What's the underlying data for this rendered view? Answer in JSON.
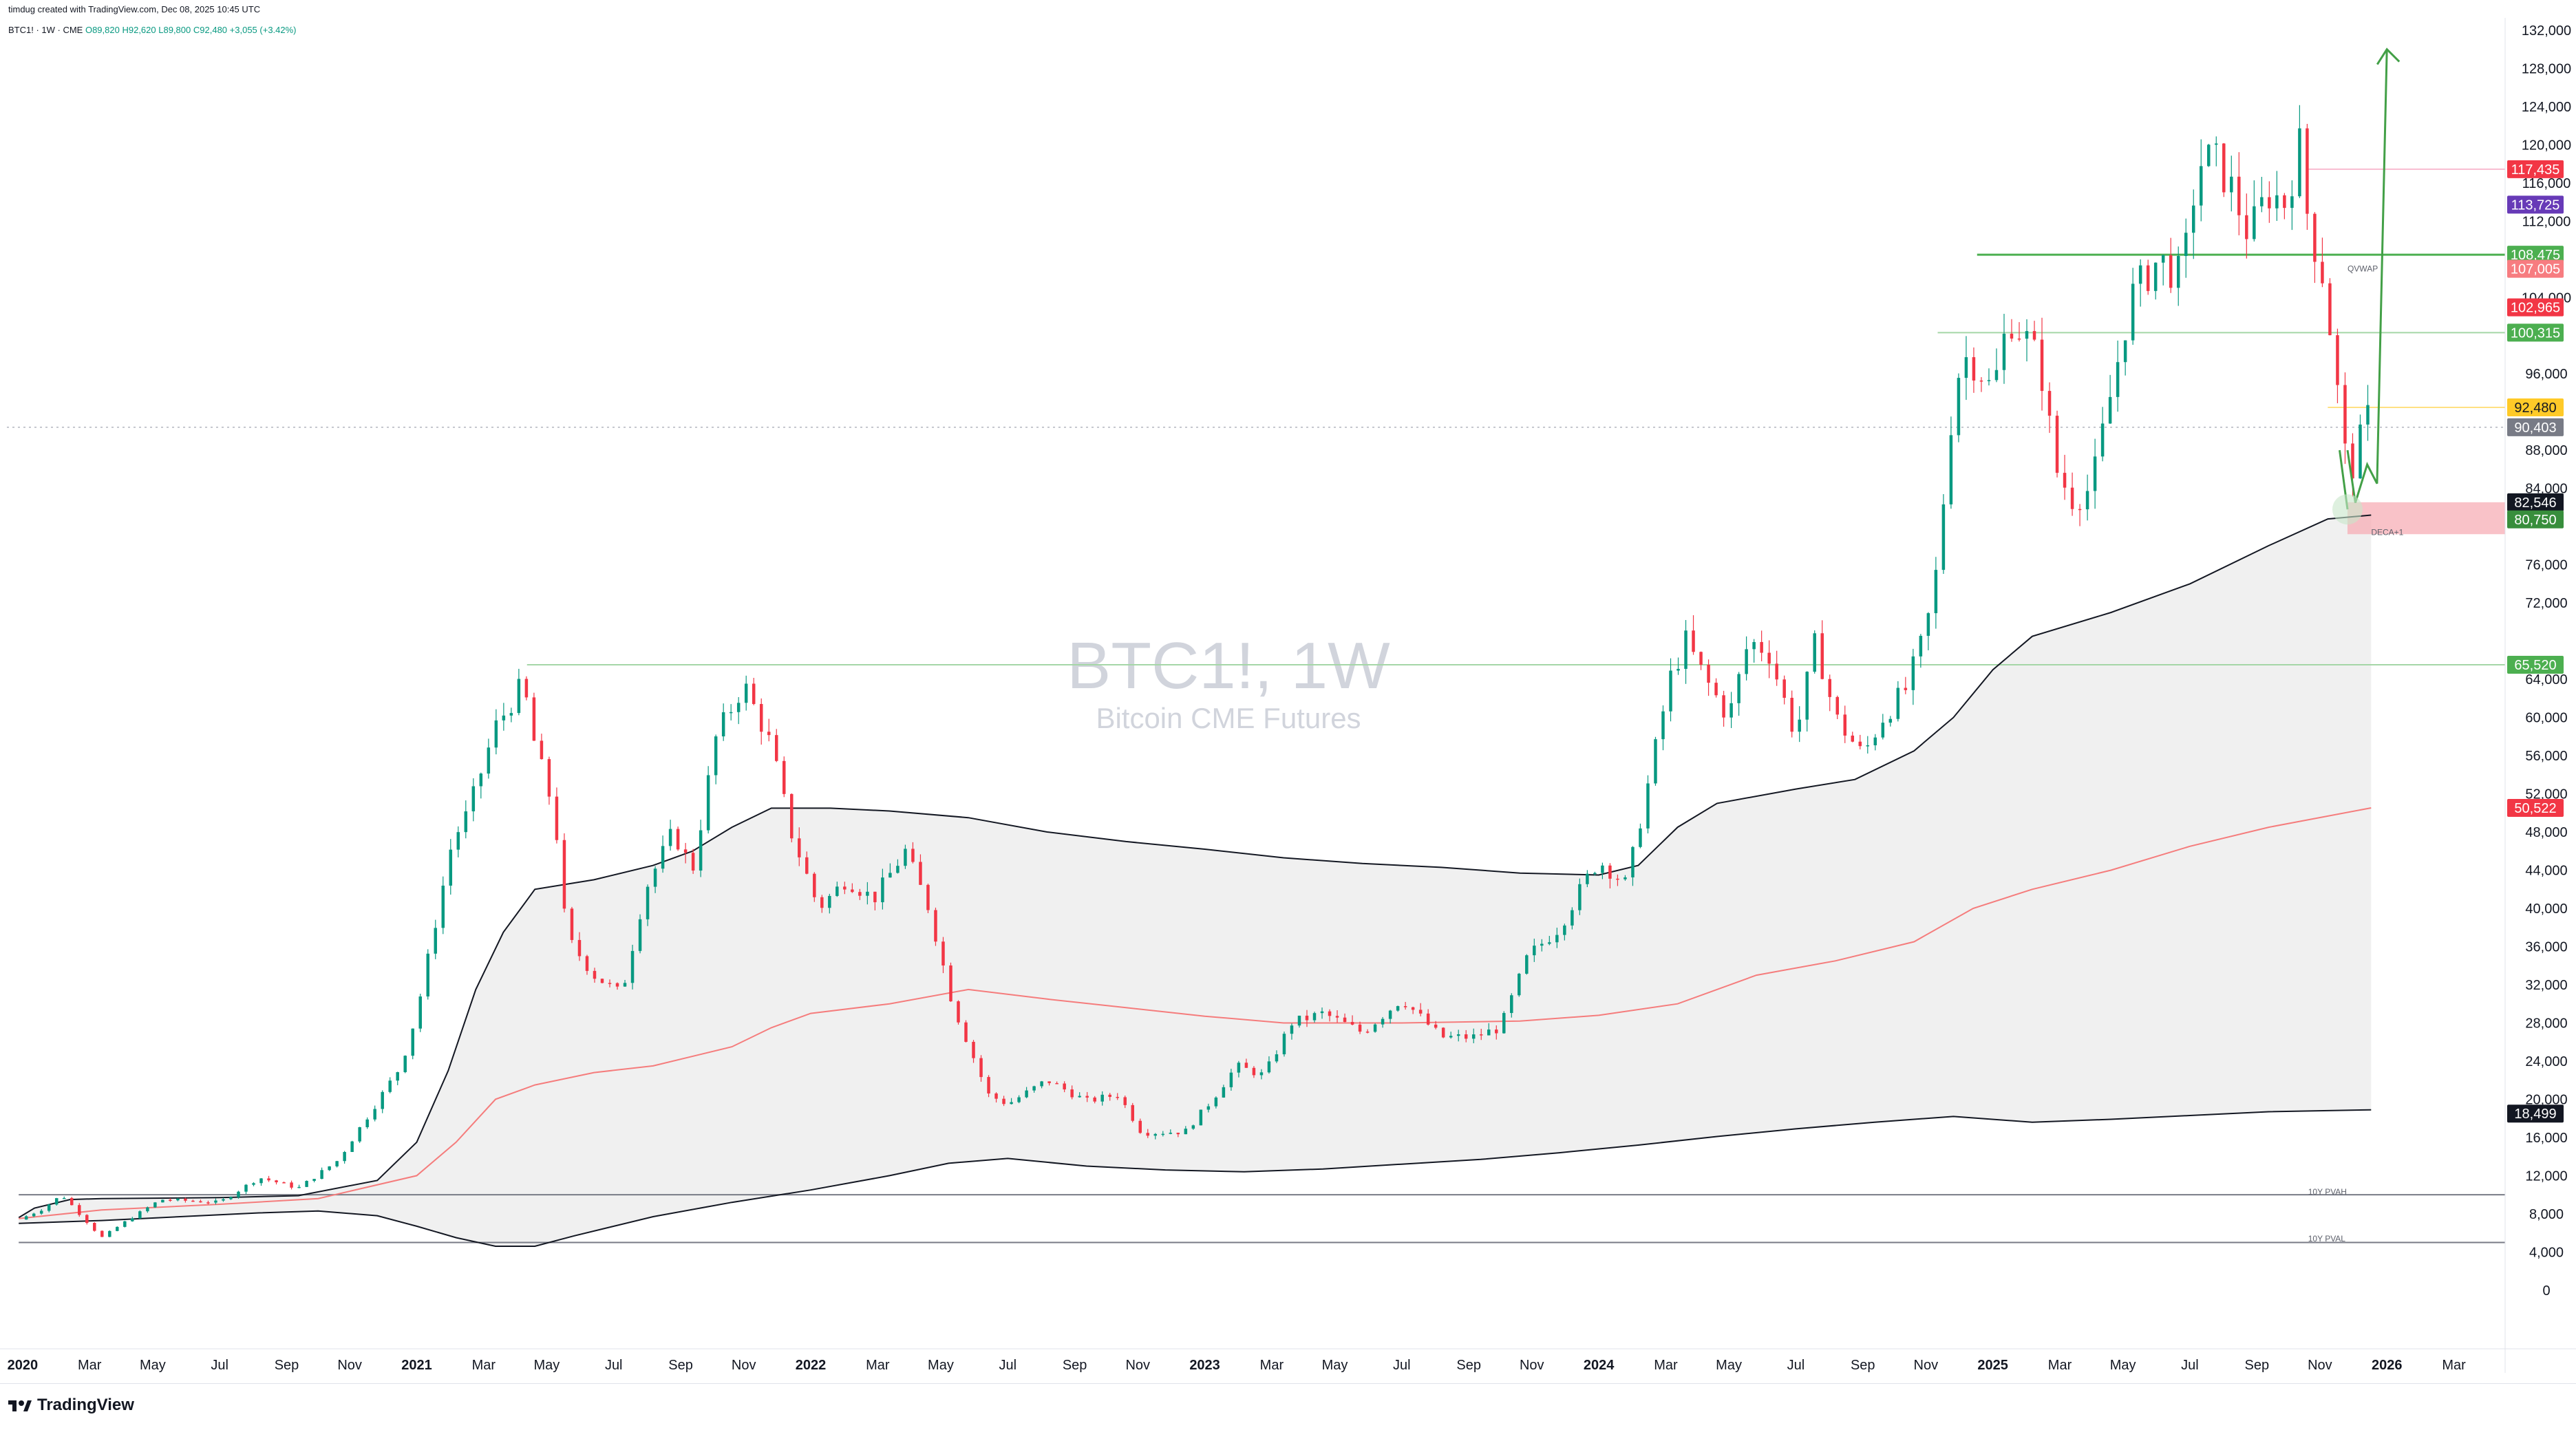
{
  "header": {
    "credit": "timdug created with TradingView.com, Dec 08, 2025 10:45 UTC",
    "symbol": "BTC1! · 1W · CME",
    "open": "O89,820",
    "high": "H92,620",
    "low": "L89,800",
    "close": "C92,480",
    "change": "+3,055 (+3.42%)"
  },
  "watermark": {
    "symbol": "BTC1!, 1W",
    "name": "Bitcoin CME Futures"
  },
  "footer": {
    "brand": "TradingView"
  },
  "colors": {
    "up": "#089981",
    "down": "#f23645",
    "channel_fill": "#f0f0f0",
    "red_line": "#f57c7c",
    "green_line": "#4caf50"
  },
  "chart_data": {
    "type": "candlestick",
    "y_ticks": [
      "132,000",
      "128,000",
      "124,000",
      "120,000",
      "116,000",
      "112,000",
      "104,000",
      "96,000",
      "88,000",
      "84,000",
      "76,000",
      "72,000",
      "64,000",
      "60,000",
      "56,000",
      "52,000",
      "48,000",
      "44,000",
      "40,000",
      "36,000",
      "32,000",
      "28,000",
      "24,000",
      "20,000",
      "16,000",
      "12,000",
      "8,000",
      "4,000",
      "0"
    ],
    "x_ticks": [
      {
        "label": "2020",
        "t": 2020.0,
        "bold": true
      },
      {
        "label": "Mar",
        "t": 2020.17
      },
      {
        "label": "May",
        "t": 2020.33
      },
      {
        "label": "Jul",
        "t": 2020.5
      },
      {
        "label": "Sep",
        "t": 2020.67
      },
      {
        "label": "Nov",
        "t": 2020.83
      },
      {
        "label": "2021",
        "t": 2021.0,
        "bold": true
      },
      {
        "label": "Mar",
        "t": 2021.17
      },
      {
        "label": "May",
        "t": 2021.33
      },
      {
        "label": "Jul",
        "t": 2021.5
      },
      {
        "label": "Sep",
        "t": 2021.67
      },
      {
        "label": "Nov",
        "t": 2021.83
      },
      {
        "label": "2022",
        "t": 2022.0,
        "bold": true
      },
      {
        "label": "Mar",
        "t": 2022.17
      },
      {
        "label": "May",
        "t": 2022.33
      },
      {
        "label": "Jul",
        "t": 2022.5
      },
      {
        "label": "Sep",
        "t": 2022.67
      },
      {
        "label": "Nov",
        "t": 2022.83
      },
      {
        "label": "2023",
        "t": 2023.0,
        "bold": true
      },
      {
        "label": "Mar",
        "t": 2023.17
      },
      {
        "label": "May",
        "t": 2023.33
      },
      {
        "label": "Jul",
        "t": 2023.5
      },
      {
        "label": "Sep",
        "t": 2023.67
      },
      {
        "label": "Nov",
        "t": 2023.83
      },
      {
        "label": "2024",
        "t": 2024.0,
        "bold": true
      },
      {
        "label": "Mar",
        "t": 2024.17
      },
      {
        "label": "May",
        "t": 2024.33
      },
      {
        "label": "Jul",
        "t": 2024.5
      },
      {
        "label": "Sep",
        "t": 2024.67
      },
      {
        "label": "Nov",
        "t": 2024.83
      },
      {
        "label": "2025",
        "t": 2025.0,
        "bold": true
      },
      {
        "label": "Mar",
        "t": 2025.17
      },
      {
        "label": "May",
        "t": 2025.33
      },
      {
        "label": "Jul",
        "t": 2025.5
      },
      {
        "label": "Sep",
        "t": 2025.67
      },
      {
        "label": "Nov",
        "t": 2025.83
      },
      {
        "label": "2026",
        "t": 2026.0,
        "bold": true
      },
      {
        "label": "Mar",
        "t": 2026.17
      }
    ],
    "price_path": [
      [
        2019.99,
        7400
      ],
      [
        2020.05,
        8500
      ],
      [
        2020.1,
        10000
      ],
      [
        2020.2,
        5500
      ],
      [
        2020.25,
        6900
      ],
      [
        2020.35,
        9500
      ],
      [
        2020.5,
        9200
      ],
      [
        2020.6,
        11800
      ],
      [
        2020.7,
        10700
      ],
      [
        2020.8,
        13600
      ],
      [
        2020.88,
        18500
      ],
      [
        2020.96,
        23500
      ],
      [
        2021.0,
        29000
      ],
      [
        2021.04,
        37000
      ],
      [
        2021.09,
        47000
      ],
      [
        2021.13,
        50000
      ],
      [
        2021.2,
        59000
      ],
      [
        2021.27,
        63500
      ],
      [
        2021.3,
        57000
      ],
      [
        2021.35,
        50000
      ],
      [
        2021.38,
        37000
      ],
      [
        2021.45,
        33000
      ],
      [
        2021.52,
        31000
      ],
      [
        2021.58,
        42000
      ],
      [
        2021.65,
        48000
      ],
      [
        2021.7,
        44000
      ],
      [
        2021.76,
        58000
      ],
      [
        2021.83,
        63500
      ],
      [
        2021.9,
        57000
      ],
      [
        2021.95,
        48000
      ],
      [
        2022.02,
        40000
      ],
      [
        2022.09,
        43000
      ],
      [
        2022.16,
        41000
      ],
      [
        2022.24,
        46000
      ],
      [
        2022.3,
        40000
      ],
      [
        2022.36,
        30000
      ],
      [
        2022.45,
        20500
      ],
      [
        2022.5,
        19500
      ],
      [
        2022.6,
        22000
      ],
      [
        2022.7,
        19800
      ],
      [
        2022.78,
        20500
      ],
      [
        2022.84,
        16500
      ],
      [
        2022.95,
        16600
      ],
      [
        2023.02,
        20000
      ],
      [
        2023.08,
        23500
      ],
      [
        2023.15,
        22500
      ],
      [
        2023.22,
        28000
      ],
      [
        2023.3,
        29000
      ],
      [
        2023.4,
        27000
      ],
      [
        2023.5,
        30500
      ],
      [
        2023.6,
        26500
      ],
      [
        2023.68,
        26500
      ],
      [
        2023.75,
        27500
      ],
      [
        2023.82,
        35000
      ],
      [
        2023.9,
        38000
      ],
      [
        2023.96,
        42500
      ],
      [
        2024.0,
        45000
      ],
      [
        2024.07,
        42500
      ],
      [
        2024.12,
        52000
      ],
      [
        2024.18,
        64000
      ],
      [
        2024.22,
        68000
      ],
      [
        2024.27,
        64000
      ],
      [
        2024.33,
        60000
      ],
      [
        2024.38,
        68000
      ],
      [
        2024.43,
        67000
      ],
      [
        2024.5,
        58000
      ],
      [
        2024.55,
        68000
      ],
      [
        2024.6,
        60000
      ],
      [
        2024.67,
        56000
      ],
      [
        2024.72,
        60000
      ],
      [
        2024.78,
        63000
      ],
      [
        2024.83,
        69000
      ],
      [
        2024.86,
        76000
      ],
      [
        2024.89,
        90000
      ],
      [
        2024.92,
        98000
      ],
      [
        2024.96,
        97000
      ],
      [
        2025.0,
        94000
      ],
      [
        2025.04,
        102000
      ],
      [
        2025.08,
        100000
      ],
      [
        2025.12,
        97000
      ],
      [
        2025.16,
        86000
      ],
      [
        2025.2,
        83000
      ],
      [
        2025.25,
        84000
      ],
      [
        2025.3,
        94000
      ],
      [
        2025.35,
        104000
      ],
      [
        2025.42,
        108000
      ],
      [
        2025.48,
        106000
      ],
      [
        2025.52,
        118000
      ],
      [
        2025.56,
        118500
      ],
      [
        2025.6,
        116000
      ],
      [
        2025.65,
        110500
      ],
      [
        2025.7,
        115000
      ],
      [
        2025.74,
        114000
      ],
      [
        2025.78,
        120000
      ],
      [
        2025.8,
        112000
      ],
      [
        2025.84,
        106000
      ],
      [
        2025.87,
        96000
      ],
      [
        2025.89,
        88000
      ],
      [
        2025.91,
        86000
      ],
      [
        2025.94,
        90000
      ],
      [
        2025.96,
        92480
      ]
    ],
    "channel_upper": [
      [
        2019.99,
        7600
      ],
      [
        2020.03,
        8600
      ],
      [
        2020.12,
        9500
      ],
      [
        2020.2,
        9600
      ],
      [
        2020.5,
        9700
      ],
      [
        2020.7,
        9900
      ],
      [
        2020.9,
        11500
      ],
      [
        2021.0,
        15500
      ],
      [
        2021.08,
        23000
      ],
      [
        2021.15,
        31500
      ],
      [
        2021.22,
        37500
      ],
      [
        2021.3,
        42000
      ],
      [
        2021.45,
        43000
      ],
      [
        2021.6,
        44500
      ],
      [
        2021.7,
        46000
      ],
      [
        2021.8,
        48500
      ],
      [
        2021.9,
        50500
      ],
      [
        2022.05,
        50500
      ],
      [
        2022.2,
        50200
      ],
      [
        2022.4,
        49500
      ],
      [
        2022.6,
        48000
      ],
      [
        2022.8,
        47000
      ],
      [
        2023.0,
        46200
      ],
      [
        2023.2,
        45300
      ],
      [
        2023.4,
        44700
      ],
      [
        2023.6,
        44300
      ],
      [
        2023.8,
        43700
      ],
      [
        2024.0,
        43500
      ],
      [
        2024.1,
        44500
      ],
      [
        2024.2,
        48500
      ],
      [
        2024.3,
        51000
      ],
      [
        2024.5,
        52500
      ],
      [
        2024.65,
        53500
      ],
      [
        2024.8,
        56500
      ],
      [
        2024.9,
        60000
      ],
      [
        2025.0,
        65000
      ],
      [
        2025.1,
        68500
      ],
      [
        2025.3,
        71000
      ],
      [
        2025.5,
        74000
      ],
      [
        2025.7,
        78000
      ],
      [
        2025.85,
        80800
      ],
      [
        2025.96,
        81200
      ]
    ],
    "channel_lower": [
      [
        2019.99,
        7000
      ],
      [
        2020.2,
        7300
      ],
      [
        2020.4,
        7700
      ],
      [
        2020.6,
        8100
      ],
      [
        2020.75,
        8300
      ],
      [
        2020.9,
        7800
      ],
      [
        2021.0,
        6700
      ],
      [
        2021.1,
        5500
      ],
      [
        2021.2,
        4600
      ],
      [
        2021.3,
        4600
      ],
      [
        2021.4,
        5700
      ],
      [
        2021.6,
        7700
      ],
      [
        2021.8,
        9200
      ],
      [
        2022.0,
        10500
      ],
      [
        2022.2,
        12000
      ],
      [
        2022.35,
        13300
      ],
      [
        2022.5,
        13800
      ],
      [
        2022.7,
        13000
      ],
      [
        2022.9,
        12600
      ],
      [
        2023.1,
        12400
      ],
      [
        2023.3,
        12700
      ],
      [
        2023.5,
        13200
      ],
      [
        2023.7,
        13700
      ],
      [
        2023.9,
        14400
      ],
      [
        2024.1,
        15200
      ],
      [
        2024.3,
        16100
      ],
      [
        2024.5,
        16900
      ],
      [
        2024.7,
        17600
      ],
      [
        2024.9,
        18200
      ],
      [
        2025.1,
        17600
      ],
      [
        2025.3,
        17900
      ],
      [
        2025.5,
        18300
      ],
      [
        2025.7,
        18700
      ],
      [
        2025.96,
        18900
      ]
    ],
    "basis": [
      [
        2019.99,
        7500
      ],
      [
        2020.2,
        8400
      ],
      [
        2020.5,
        9000
      ],
      [
        2020.75,
        9600
      ],
      [
        2021.0,
        12000
      ],
      [
        2021.1,
        15500
      ],
      [
        2021.2,
        20000
      ],
      [
        2021.3,
        21500
      ],
      [
        2021.45,
        22800
      ],
      [
        2021.6,
        23500
      ],
      [
        2021.8,
        25500
      ],
      [
        2021.9,
        27500
      ],
      [
        2022.0,
        29000
      ],
      [
        2022.2,
        30000
      ],
      [
        2022.4,
        31500
      ],
      [
        2022.6,
        30500
      ],
      [
        2022.8,
        29600
      ],
      [
        2023.0,
        28700
      ],
      [
        2023.2,
        28000
      ],
      [
        2023.5,
        28000
      ],
      [
        2023.8,
        28200
      ],
      [
        2024.0,
        28800
      ],
      [
        2024.2,
        30000
      ],
      [
        2024.4,
        33000
      ],
      [
        2024.6,
        34500
      ],
      [
        2024.8,
        36500
      ],
      [
        2024.95,
        40000
      ],
      [
        2025.1,
        42000
      ],
      [
        2025.3,
        44000
      ],
      [
        2025.5,
        46500
      ],
      [
        2025.7,
        48500
      ],
      [
        2025.96,
        50522
      ]
    ],
    "price_labels": [
      {
        "text": "117,435",
        "value": 117435,
        "color": "#f23645",
        "text_color": "#ffffff"
      },
      {
        "text": "113,725",
        "value": 113725,
        "color": "#673ab7",
        "text_color": "#ffffff"
      },
      {
        "text": "108,475",
        "value": 108475,
        "color": "#4caf50",
        "text_color": "#ffffff"
      },
      {
        "text": "107,005",
        "value": 107005,
        "color": "#f77c80",
        "text_color": "#ffffff"
      },
      {
        "text": "102,965",
        "value": 102965,
        "color": "#f23645",
        "text_color": "#ffffff"
      },
      {
        "text": "100,315",
        "value": 100315,
        "color": "#4caf50",
        "text_color": "#ffffff"
      },
      {
        "text": "92,480",
        "value": 92480,
        "color": "#ffca28",
        "text_color": "#131722"
      },
      {
        "text": "90,403",
        "value": 90403,
        "color": "#787b86",
        "text_color": "#ffffff"
      },
      {
        "text": "82,546",
        "value": 82546,
        "color": "#131722",
        "text_color": "#ffffff"
      },
      {
        "text": "80,750",
        "value": 80750,
        "color": "#388e3c",
        "text_color": "#ffffff"
      },
      {
        "text": "65,520",
        "value": 65520,
        "color": "#4caf50",
        "text_color": "#ffffff"
      },
      {
        "text": "50,522",
        "value": 50522,
        "color": "#f23645",
        "text_color": "#ffffff"
      },
      {
        "text": "18,499",
        "value": 18499,
        "color": "#131722",
        "text_color": "#ffffff"
      }
    ],
    "annotations": [
      {
        "text": "QVWAP",
        "value": 107005,
        "t": 2025.9
      },
      {
        "text": "DECA+1",
        "value": 79400,
        "t": 2025.96
      },
      {
        "text": "10Y PVAH",
        "value": 10300,
        "t": 2025.8
      },
      {
        "text": "10Y PVAL",
        "value": 5400,
        "t": 2025.8
      }
    ],
    "levels": [
      {
        "value": 108475,
        "t0": 2024.96,
        "color": "#4caf50",
        "width": 3
      },
      {
        "value": 100315,
        "t0": 2024.86,
        "color": "#a5d6a7",
        "width": 2
      },
      {
        "value": 117435,
        "t0": 2025.8,
        "color": "#f8bbd0",
        "width": 2
      },
      {
        "value": 92480,
        "t0": 2025.85,
        "color": "#ffe082",
        "width": 2
      },
      {
        "value": 65520,
        "t0": 2021.28,
        "color": "#a5d6a7",
        "width": 2
      },
      {
        "value": 10000,
        "t0": 2019.99,
        "color": "#787b86",
        "width": 2
      },
      {
        "value": 5000,
        "t0": 2019.99,
        "color": "#787b86",
        "width": 2
      }
    ],
    "dotted_price_level": 90403,
    "red_box": {
      "t0": 2025.9,
      "t1": 2026.3,
      "v0": 79200,
      "v1": 82546
    },
    "projection_arrow": [
      [
        2025.9,
        88000
      ],
      [
        2025.92,
        82500
      ],
      [
        2025.95,
        86500
      ],
      [
        2025.975,
        84500
      ],
      [
        2026.0,
        130000
      ]
    ],
    "down_arrow": [
      [
        2025.88,
        88000
      ],
      [
        2025.9,
        81800
      ]
    ]
  }
}
